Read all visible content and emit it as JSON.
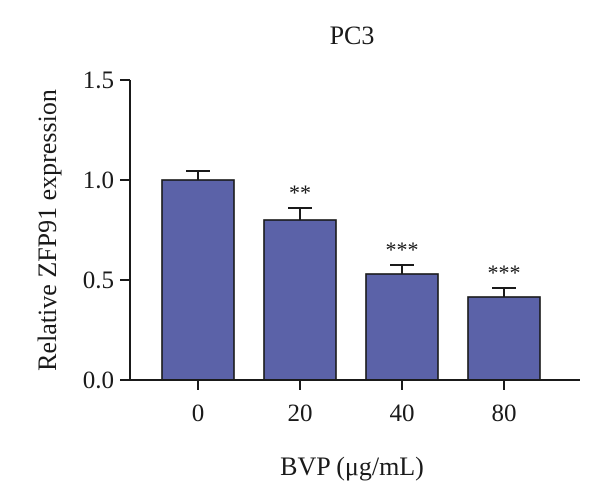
{
  "chart_data": {
    "type": "bar",
    "title": "PC3",
    "xlabel": "BVP (μg/mL)",
    "ylabel": "Relative ZFP91 expression",
    "categories": [
      "0",
      "20",
      "40",
      "80"
    ],
    "values": [
      1.0,
      0.8,
      0.53,
      0.415
    ],
    "errors": [
      0.045,
      0.06,
      0.045,
      0.045
    ],
    "significance": [
      "",
      "**",
      "***",
      "***"
    ],
    "ylim": [
      0,
      1.5
    ],
    "yticks": [
      "0.0",
      "0.5",
      "1.0",
      "1.5"
    ],
    "ytick_values": [
      0,
      0.5,
      1.0,
      1.5
    ],
    "grid": false,
    "colors": {
      "bar_fill": "#5b62a8",
      "bar_edge": "#1a1a1a",
      "axis": "#1a1a1a"
    }
  }
}
